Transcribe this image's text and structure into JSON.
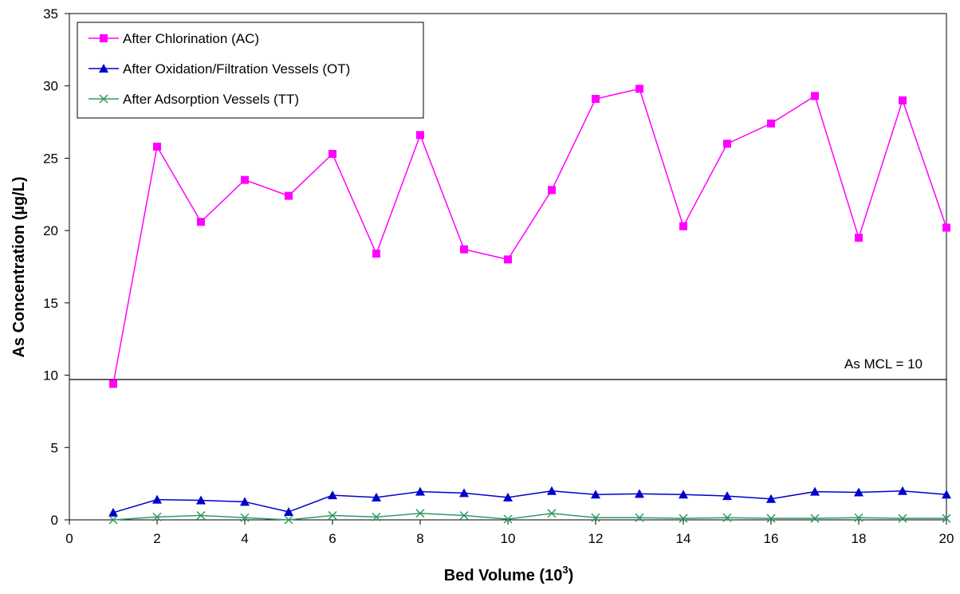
{
  "chart_data": {
    "type": "line",
    "title": "",
    "xlabel": "Bed Volume (10",
    "xlabel_sup": "3",
    "xlabel_suffix": ")",
    "ylabel": "As Concentration (µg/L)",
    "xlim": [
      0,
      20
    ],
    "ylim": [
      0,
      35
    ],
    "xticks": [
      0,
      2,
      4,
      6,
      8,
      10,
      12,
      14,
      16,
      18,
      20
    ],
    "yticks": [
      0,
      5,
      10,
      15,
      20,
      25,
      30,
      35
    ],
    "grid": false,
    "legend_position": "top-left",
    "x": [
      1,
      2,
      3,
      4,
      5,
      6,
      7,
      8,
      9,
      10,
      11,
      12,
      13,
      14,
      15,
      16,
      17,
      18,
      19,
      20
    ],
    "series": [
      {
        "name": "After Chlorination (AC)",
        "color": "#ff00ff",
        "marker": "square",
        "values": [
          9.4,
          25.8,
          20.6,
          23.5,
          22.4,
          25.3,
          18.4,
          26.6,
          18.7,
          18.0,
          22.8,
          29.1,
          29.8,
          20.3,
          26.0,
          27.4,
          29.3,
          19.5,
          29.0,
          20.2
        ]
      },
      {
        "name": "After Oxidation/Filtration Vessels (OT)",
        "color": "#0000cc",
        "marker": "triangle",
        "values": [
          0.5,
          1.4,
          1.35,
          1.25,
          0.55,
          1.7,
          1.55,
          1.95,
          1.85,
          1.55,
          2.0,
          1.75,
          1.8,
          1.75,
          1.65,
          1.45,
          1.95,
          1.9,
          2.0,
          1.75
        ]
      },
      {
        "name": "After Adsorption Vessels (TT)",
        "color": "#339966",
        "marker": "x",
        "values": [
          0.0,
          0.2,
          0.3,
          0.15,
          0.0,
          0.3,
          0.2,
          0.45,
          0.3,
          0.05,
          0.45,
          0.15,
          0.15,
          0.1,
          0.15,
          0.1,
          0.1,
          0.15,
          0.1,
          0.1
        ]
      }
    ],
    "reference_line": {
      "value": 9.7,
      "label": "As MCL = 10",
      "color": "#000000"
    }
  }
}
